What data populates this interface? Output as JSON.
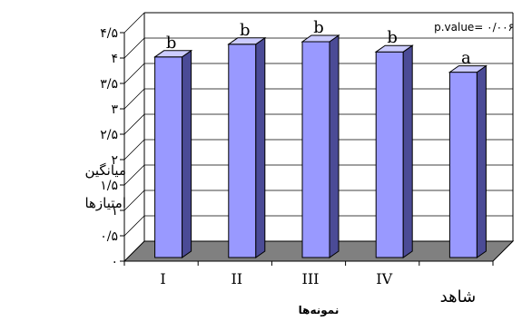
{
  "chart_data": {
    "type": "bar",
    "title": "",
    "ylabel_line1": "میانگین",
    "ylabel_line2": "امتیازها",
    "xlabel": "نمونه‌ها",
    "annotation": "p.value= ۰/۰۰۶",
    "categories": [
      "I",
      "II",
      "III",
      "IV",
      "شاهد"
    ],
    "values": [
      3.95,
      4.2,
      4.25,
      4.05,
      3.65
    ],
    "significance_letters": [
      "b",
      "b",
      "b",
      "b",
      "a"
    ],
    "ylim": [
      0,
      4.5
    ],
    "yticks": [
      0,
      0.5,
      1,
      1.5,
      2,
      2.5,
      3,
      3.5,
      4,
      4.5
    ],
    "ytick_labels": [
      "۰",
      "۰/۵",
      "۱",
      "۱/۵",
      "۲",
      "۲/۵",
      "۳",
      "۳/۵",
      "۴",
      "۴/۵"
    ],
    "grid": true,
    "bar_color": "#9999ff",
    "bar_side_color": "#4b4b96",
    "bar_top_color": "#ccccff",
    "floor_color": "#808080"
  }
}
